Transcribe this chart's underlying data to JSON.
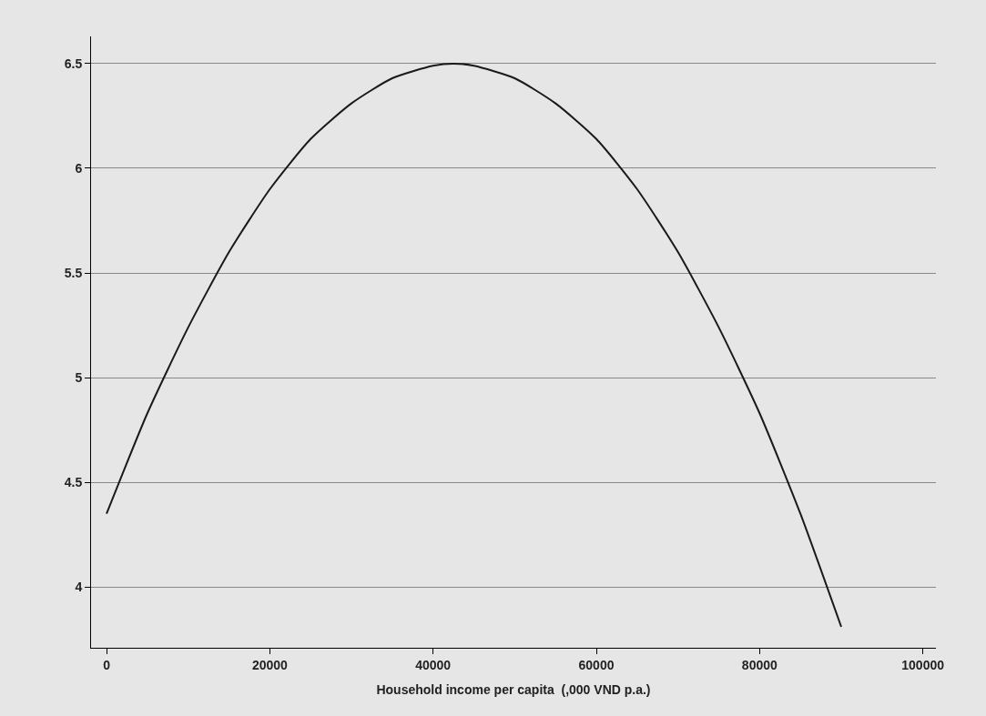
{
  "chart_data": {
    "type": "line",
    "xlabel": "Household income per capita  (,000 VND p.a.)",
    "x": [
      0,
      5000,
      10000,
      15000,
      20000,
      25000,
      30000,
      35000,
      40000,
      42500,
      45000,
      50000,
      55000,
      60000,
      65000,
      70000,
      75000,
      80000,
      85000,
      90000
    ],
    "series": [
      {
        "color": "#1a1a1a",
        "values": [
          4.35,
          4.83,
          5.24,
          5.6,
          5.9,
          6.14,
          6.31,
          6.43,
          6.49,
          6.5,
          6.49,
          6.43,
          6.31,
          6.14,
          5.9,
          5.6,
          5.24,
          4.83,
          4.35,
          3.81
        ]
      }
    ],
    "xlim": [
      -1900,
      101600
    ],
    "xticks": [
      0,
      20000,
      40000,
      60000,
      80000,
      100000
    ],
    "ylim": [
      3.71,
      6.63
    ],
    "yticks": [
      {
        "value": 4,
        "label": "4"
      },
      {
        "value": 4.5,
        "label": "4.5"
      },
      {
        "value": 5,
        "label": "5"
      },
      {
        "value": 5.5,
        "label": "5.5"
      },
      {
        "value": 6,
        "label": "6"
      },
      {
        "value": 6.5,
        "label": "6.5"
      }
    ],
    "grid": "y",
    "marker": "none",
    "line_style": "solid"
  }
}
